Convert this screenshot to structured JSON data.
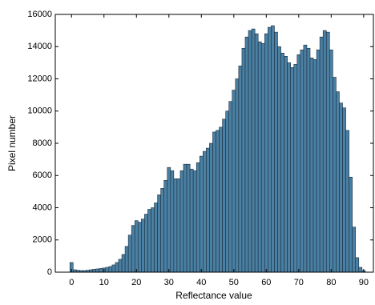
{
  "chart_data": {
    "type": "histogram",
    "xlabel": "Reflectance value",
    "ylabel": "Pixel number",
    "bins": [
      -0.5,
      0.5,
      1.5,
      2.5,
      3.5,
      4.5,
      5.5,
      6.5,
      7.5,
      8.5,
      9.5,
      10.5,
      11.5,
      12.5,
      13.5,
      14.5,
      15.5,
      16.5,
      17.5,
      18.5,
      19.5,
      20.5,
      21.5,
      22.5,
      23.5,
      24.5,
      25.5,
      26.5,
      27.5,
      28.5,
      29.5,
      30.5,
      31.5,
      32.5,
      33.5,
      34.5,
      35.5,
      36.5,
      37.5,
      38.5,
      39.5,
      40.5,
      41.5,
      42.5,
      43.5,
      44.5,
      45.5,
      46.5,
      47.5,
      48.5,
      49.5,
      50.5,
      51.5,
      52.5,
      53.5,
      54.5,
      55.5,
      56.5,
      57.5,
      58.5,
      59.5,
      60.5,
      61.5,
      62.5,
      63.5,
      64.5,
      65.5,
      66.5,
      67.5,
      68.5,
      69.5,
      70.5,
      71.5,
      72.5,
      73.5,
      74.5,
      75.5,
      76.5,
      77.5,
      78.5,
      79.5,
      80.5,
      81.5,
      82.5,
      83.5,
      84.5,
      85.5,
      86.5,
      87.5,
      88.5,
      89.5,
      90.5
    ],
    "values": [
      600,
      150,
      120,
      100,
      100,
      120,
      150,
      180,
      200,
      230,
      260,
      300,
      350,
      450,
      600,
      800,
      1100,
      1600,
      2300,
      2900,
      3200,
      3100,
      3300,
      3600,
      3900,
      4000,
      4300,
      4800,
      5200,
      5700,
      6500,
      6300,
      5800,
      5800,
      6300,
      6700,
      6700,
      6400,
      6300,
      6800,
      7200,
      7500,
      7700,
      8000,
      8700,
      8800,
      9000,
      9500,
      10000,
      10600,
      11300,
      12000,
      12800,
      13900,
      14600,
      15000,
      15100,
      14800,
      14300,
      14200,
      14800,
      15200,
      15300,
      14900,
      14000,
      13600,
      13400,
      13000,
      12700,
      12900,
      13500,
      13800,
      14100,
      13900,
      13300,
      13200,
      13800,
      14600,
      15000,
      14900,
      13800,
      12100,
      11200,
      10500,
      10200,
      8800,
      5900,
      2800,
      900,
      300,
      100
    ],
    "color": "#4a80a3",
    "edgecolor": "#1c2c3c",
    "xlim": [
      -5,
      93
    ],
    "xticks": [
      0,
      10,
      20,
      30,
      40,
      50,
      60,
      70,
      80,
      90
    ],
    "ylim": [
      0,
      16000
    ],
    "yticks": [
      0,
      2000,
      4000,
      6000,
      8000,
      10000,
      12000,
      14000,
      16000
    ],
    "grid": false
  }
}
